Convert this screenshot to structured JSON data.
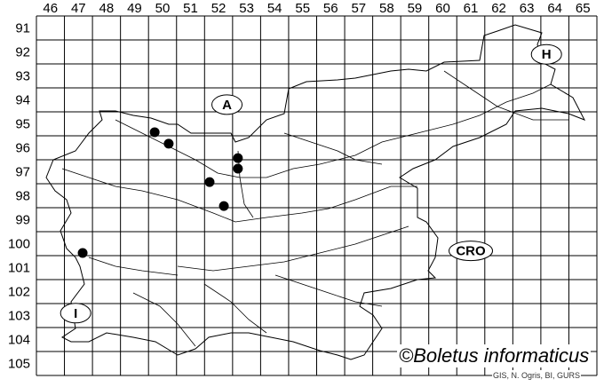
{
  "map": {
    "grid": {
      "columns": [
        "46",
        "47",
        "48",
        "49",
        "50",
        "51",
        "52",
        "53",
        "54",
        "55",
        "56",
        "57",
        "58",
        "59",
        "60",
        "61",
        "62",
        "63",
        "64",
        "65"
      ],
      "rows": [
        "91",
        "92",
        "93",
        "94",
        "95",
        "96",
        "97",
        "98",
        "99",
        "100",
        "101",
        "102",
        "103",
        "104",
        "105"
      ]
    },
    "countries": [
      {
        "label": "A",
        "col": 52.8,
        "row": 94.7
      },
      {
        "label": "H",
        "col": 64.2,
        "row": 92.6
      },
      {
        "label": "CRO",
        "col": 61.5,
        "row": 100.8
      },
      {
        "label": "I",
        "col": 47.4,
        "row": 103.4
      }
    ],
    "records": [
      {
        "col": 50.22,
        "row": 95.85
      },
      {
        "col": 50.72,
        "row": 96.33
      },
      {
        "col": 53.19,
        "row": 96.93
      },
      {
        "col": 53.19,
        "row": 97.37
      },
      {
        "col": 52.18,
        "row": 97.93
      },
      {
        "col": 52.69,
        "row": 98.93
      },
      {
        "col": 47.65,
        "row": 100.89
      }
    ],
    "line_color": "#000000",
    "record_color": "#000000"
  },
  "copyright": "©Boletus informaticus",
  "credit": "GIS, N. Ogris, BI, GURS"
}
